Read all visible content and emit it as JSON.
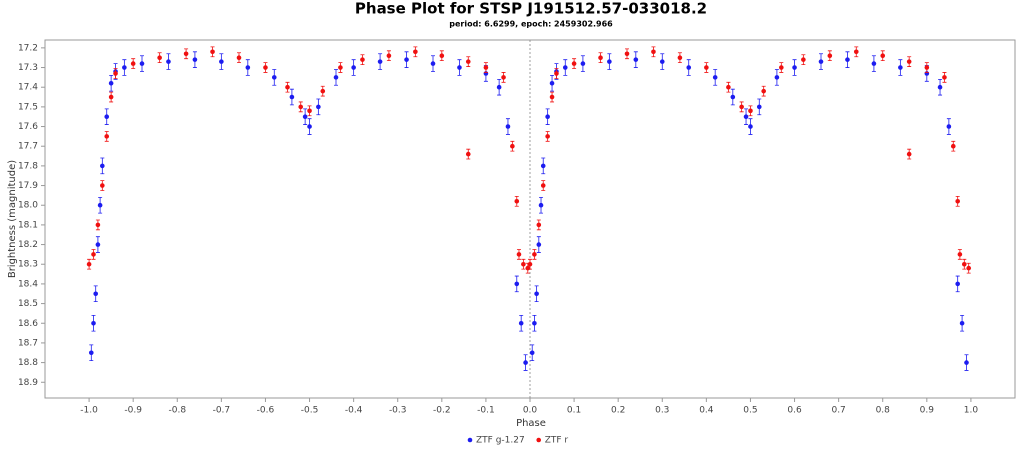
{
  "chart_data": {
    "type": "scatter",
    "title": "Phase Plot for STSP J191512.57-033018.2",
    "subtitle": "period: 6.6299, epoch: 2459302.966",
    "x_label": "Phase",
    "y_label": "Brightness (magnitude)",
    "xlim": [
      -1.1,
      1.1
    ],
    "ylim": [
      17.16,
      18.98
    ],
    "y_inverted": true,
    "xticks": [
      {
        "value": -1,
        "label": "-1.0"
      },
      -0.9,
      -0.8,
      -0.7,
      -0.6,
      -0.5,
      -0.4,
      -0.3,
      -0.2,
      -0.1,
      {
        "value": 0,
        "label": "0.0"
      },
      0.1,
      0.2,
      0.3,
      0.4,
      0.5,
      0.6,
      0.7,
      0.8,
      0.9,
      {
        "value": 1,
        "label": "1.0"
      }
    ],
    "yticks": [
      17.2,
      17.3,
      17.4,
      17.5,
      17.6,
      17.7,
      17.8,
      17.9,
      {
        "value": 18,
        "label": "18.0"
      },
      18.1,
      18.2,
      18.3,
      18.4,
      18.5,
      18.6,
      18.7,
      18.8,
      18.9
    ],
    "vline_x": 0,
    "legend": "bottom",
    "series": [
      {
        "name": "ZTF g-1.27",
        "color": "#1c1cf0",
        "yerr": 0.04,
        "x": [
          -0.995,
          -0.99,
          -0.985,
          -0.98,
          -0.975,
          -0.97,
          -0.96,
          -0.95,
          -0.94,
          -0.92,
          -0.88,
          -0.82,
          -0.76,
          -0.7,
          -0.64,
          -0.58,
          -0.54,
          -0.51,
          -0.5,
          -0.48,
          -0.44,
          -0.4,
          -0.34,
          -0.28,
          -0.22,
          -0.16,
          -0.1,
          -0.07,
          -0.05,
          -0.03,
          -0.02,
          -0.01,
          0.005,
          0.01,
          0.015,
          0.02,
          0.025,
          0.03,
          0.04,
          0.05,
          0.06,
          0.08,
          0.12,
          0.18,
          0.24,
          0.3,
          0.36,
          0.42,
          0.46,
          0.49,
          0.5,
          0.52,
          0.56,
          0.6,
          0.66,
          0.72,
          0.78,
          0.84,
          0.9,
          0.93,
          0.95,
          0.97,
          0.98,
          0.99
        ],
        "values": [
          18.75,
          18.6,
          18.45,
          18.2,
          18.0,
          17.8,
          17.55,
          17.38,
          17.32,
          17.3,
          17.28,
          17.27,
          17.26,
          17.27,
          17.3,
          17.35,
          17.45,
          17.55,
          17.6,
          17.5,
          17.35,
          17.3,
          17.27,
          17.26,
          17.28,
          17.3,
          17.33,
          17.4,
          17.6,
          18.4,
          18.6,
          18.8,
          18.75,
          18.6,
          18.45,
          18.2,
          18.0,
          17.8,
          17.55,
          17.38,
          17.32,
          17.3,
          17.28,
          17.27,
          17.26,
          17.27,
          17.3,
          17.35,
          17.45,
          17.55,
          17.6,
          17.5,
          17.35,
          17.3,
          17.27,
          17.26,
          17.28,
          17.3,
          17.33,
          17.4,
          17.6,
          18.4,
          18.6,
          18.8
        ]
      },
      {
        "name": "ZTF r",
        "color": "#f01010",
        "yerr": 0.025,
        "x": [
          -1.0,
          -0.99,
          -0.98,
          -0.97,
          -0.96,
          -0.95,
          -0.94,
          -0.9,
          -0.84,
          -0.78,
          -0.72,
          -0.66,
          -0.6,
          -0.55,
          -0.52,
          -0.5,
          -0.47,
          -0.43,
          -0.38,
          -0.32,
          -0.26,
          -0.2,
          -0.14,
          -0.14,
          -0.1,
          -0.06,
          -0.04,
          -0.03,
          -0.025,
          -0.015,
          -0.005,
          0.0,
          0.01,
          0.02,
          0.03,
          0.04,
          0.05,
          0.06,
          0.1,
          0.16,
          0.22,
          0.28,
          0.34,
          0.4,
          0.45,
          0.48,
          0.5,
          0.53,
          0.57,
          0.62,
          0.68,
          0.74,
          0.8,
          0.86,
          0.86,
          0.9,
          0.94,
          0.96,
          0.97,
          0.975,
          0.985,
          0.995
        ],
        "values": [
          18.3,
          18.25,
          18.1,
          17.9,
          17.65,
          17.45,
          17.33,
          17.28,
          17.25,
          17.23,
          17.22,
          17.25,
          17.3,
          17.4,
          17.5,
          17.52,
          17.42,
          17.3,
          17.26,
          17.24,
          17.22,
          17.24,
          17.27,
          17.74,
          17.3,
          17.35,
          17.7,
          17.98,
          18.25,
          18.3,
          18.32,
          18.3,
          18.25,
          18.1,
          17.9,
          17.65,
          17.45,
          17.33,
          17.28,
          17.25,
          17.23,
          17.22,
          17.25,
          17.3,
          17.4,
          17.5,
          17.52,
          17.42,
          17.3,
          17.26,
          17.24,
          17.22,
          17.24,
          17.27,
          17.74,
          17.3,
          17.35,
          17.7,
          17.98,
          18.25,
          18.3,
          18.32
        ]
      }
    ]
  }
}
